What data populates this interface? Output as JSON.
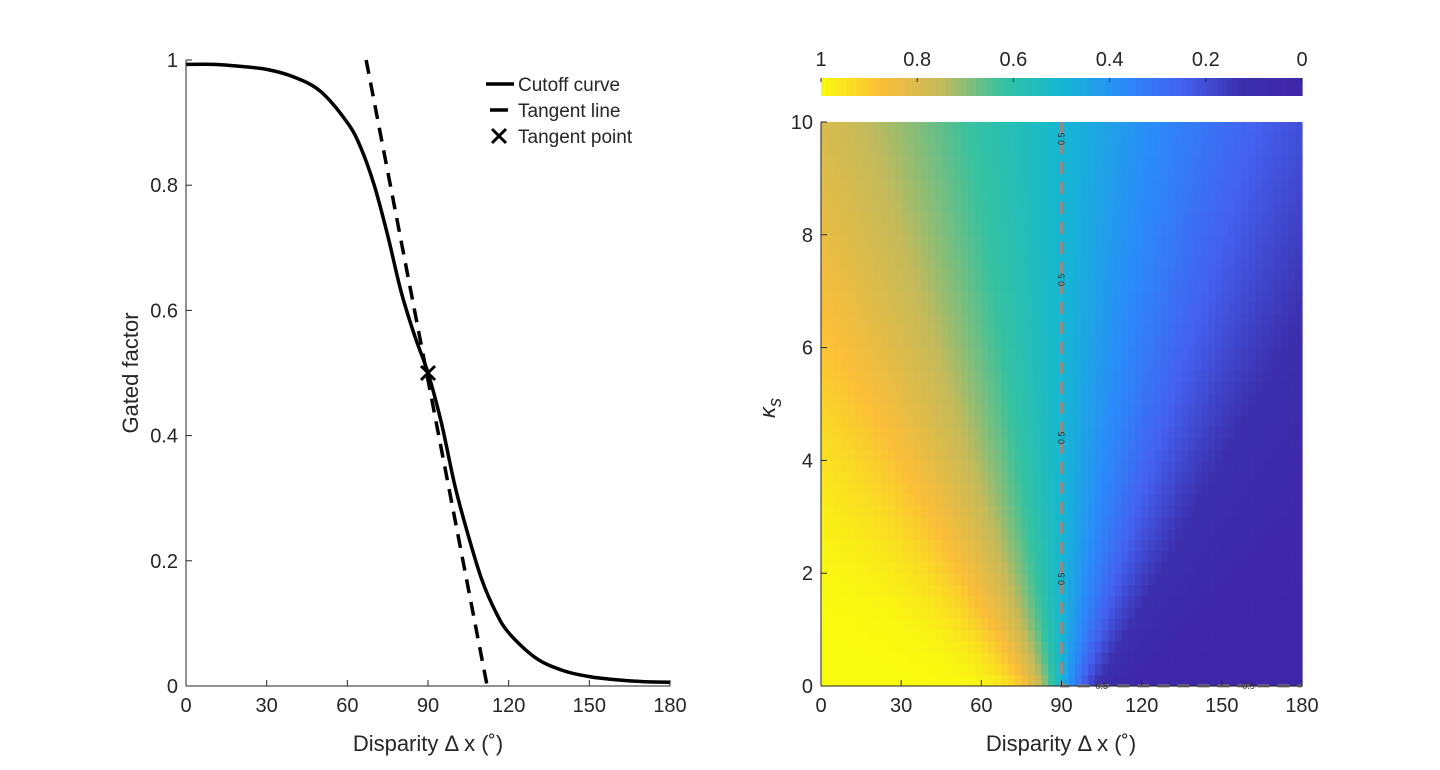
{
  "chart_data": [
    {
      "type": "line",
      "xlabel": "Disparity Δ x (˚)",
      "ylabel": "Gated factor",
      "xlim": [
        0,
        180
      ],
      "ylim": [
        0,
        1
      ],
      "xticks": [
        0,
        30,
        60,
        90,
        120,
        150,
        180
      ],
      "yticks": [
        0,
        0.2,
        0.4,
        0.6,
        0.8,
        1
      ],
      "ytick_labels": [
        "0",
        "0.2",
        "0.4",
        "0.6",
        "0.8",
        "1"
      ],
      "grid": false,
      "legend_position": "top-right",
      "series": [
        {
          "name": "Cutoff curve",
          "style": "solid",
          "color": "#000000",
          "x": [
            0,
            10,
            20,
            30,
            40,
            50,
            60,
            65,
            70,
            75,
            80,
            85,
            90,
            95,
            100,
            105,
            110,
            115,
            120,
            130,
            140,
            150,
            160,
            170,
            180
          ],
          "y": [
            0.993,
            0.993,
            0.99,
            0.985,
            0.973,
            0.95,
            0.9,
            0.86,
            0.8,
            0.72,
            0.63,
            0.56,
            0.5,
            0.42,
            0.32,
            0.24,
            0.17,
            0.12,
            0.085,
            0.045,
            0.025,
            0.015,
            0.01,
            0.007,
            0.006
          ]
        },
        {
          "name": "Tangent line",
          "style": "dashed",
          "color": "#000000",
          "x": [
            67,
            112
          ],
          "y": [
            1.0,
            0.0
          ]
        },
        {
          "name": "Tangent point",
          "style": "marker-x",
          "color": "#000000",
          "x": [
            90
          ],
          "y": [
            0.5
          ]
        }
      ]
    },
    {
      "type": "heatmap",
      "xlabel": "Disparity Δ x (˚)",
      "ylabel": "κ",
      "ylabel_subscript": "s",
      "xlim": [
        0,
        180
      ],
      "ylim": [
        0,
        10
      ],
      "xticks": [
        0,
        30,
        60,
        90,
        120,
        150,
        180
      ],
      "yticks": [
        0,
        2,
        4,
        6,
        8,
        10
      ],
      "colorbar": {
        "position": "top",
        "ticks": [
          1,
          0.8,
          0.6,
          0.4,
          0.2,
          0
        ],
        "tick_labels": [
          "1",
          "0.8",
          "0.6",
          "0.4",
          "0.2",
          "0"
        ],
        "colors": [
          "#f9fb0e",
          "#fbbe38",
          "#c4ba5a",
          "#35c2a0",
          "#14b8d2",
          "#2a8cfa",
          "#4461f0",
          "#3c2fad",
          "#3e26a8"
        ]
      },
      "contour": {
        "level": 0.5,
        "label": "0.5",
        "color": "#8c8c8c",
        "style": "dashed",
        "path": [
          [
            90,
            10
          ],
          [
            90,
            0
          ],
          [
            180,
            0
          ]
        ],
        "label_positions": [
          [
            90,
            9.7
          ],
          [
            90,
            7.2
          ],
          [
            90,
            4.4
          ],
          [
            90,
            1.9
          ],
          [
            105,
            0
          ],
          [
            160,
            0
          ]
        ]
      },
      "grid_resolution": {
        "nx": 72,
        "ny": 50
      },
      "model": "value = 1 / (1 + exp((x - 90) / (7 + 6*kappa)))"
    }
  ]
}
